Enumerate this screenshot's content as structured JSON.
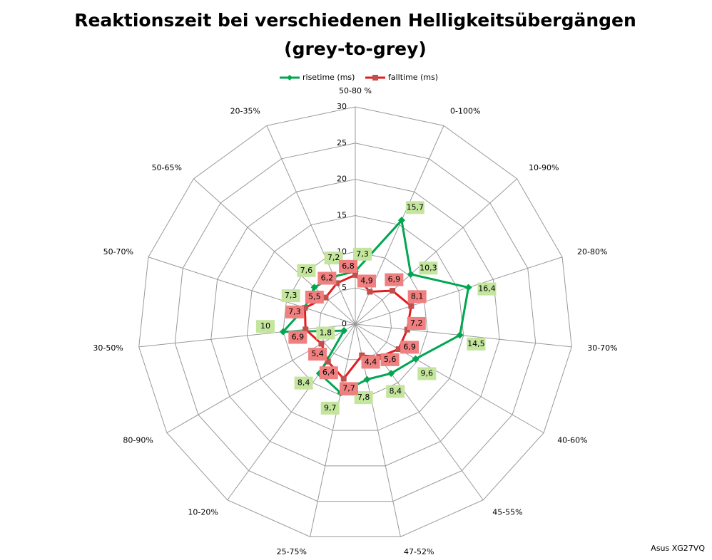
{
  "chart_data": {
    "type": "radar",
    "title": [
      "Reaktionszeit bei verschiedenen Helligkeitsübergängen",
      "(grey-to-grey)"
    ],
    "categories": [
      "50-80 %",
      "0-100%",
      "10-90%",
      "20-80%",
      "30-70%",
      "40-60%",
      "45-55%",
      "47-52%",
      "25-75%",
      "10-20%",
      "80-90%",
      "30-50%",
      "50-70%",
      "50-65%",
      "20-35%"
    ],
    "series": [
      {
        "name": "risetime (ms)",
        "color": "#00a650",
        "marker": "diamond",
        "label_color": "#c4e59e",
        "values": [
          7.3,
          15.7,
          10.3,
          16.4,
          14.5,
          9.6,
          8.4,
          7.8,
          9.7,
          8.4,
          1.8,
          10,
          7.3,
          7.6,
          7.2
        ],
        "value_labels": [
          "7,3",
          "15,7",
          "10,3",
          "16,4",
          "14,5",
          "9,6",
          "8,4",
          "7,8",
          "9,7",
          "8,4",
          "1,8",
          "10",
          "7,3",
          "7,6",
          "7,2"
        ]
      },
      {
        "name": "falltime (ms)",
        "color": "#e41a1c",
        "marker_color": "#c0504d",
        "marker": "square",
        "label_color": "#f08080",
        "values": [
          6.8,
          4.9,
          6.9,
          8.1,
          7.2,
          6.9,
          5.6,
          4.4,
          7.7,
          6.4,
          5.4,
          6.9,
          7.3,
          5.5,
          6.2
        ],
        "value_labels": [
          "6,8",
          "4,9",
          "6,9",
          "8,1",
          "7,2",
          "6,9",
          "5,6",
          "4,4",
          "7,7",
          "6,4",
          "5,4",
          "6,9",
          "7,3",
          "5,5",
          "6,2"
        ]
      }
    ],
    "ylim": [
      0,
      30
    ],
    "yticks": [
      0,
      5,
      10,
      15,
      20,
      25,
      30
    ],
    "grid": true,
    "legend": "top",
    "credit": "Asus XG27VQ"
  }
}
